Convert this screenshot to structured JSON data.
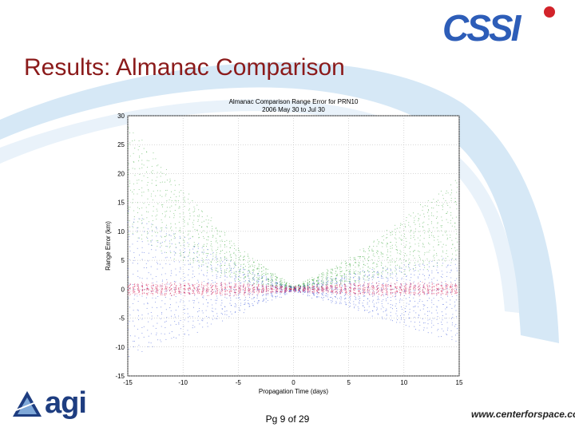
{
  "slide": {
    "title": "Results: Almanac Comparison",
    "page_label": "Pg 9 of 29",
    "brand_logo_text": "CSSI",
    "agi_logo_text": "agi",
    "footer_url": "www.centerforspace.com"
  },
  "colors": {
    "title": "#8b1a1a",
    "swoosh": "#d6e8f6",
    "series_green": "#2ca02c",
    "series_blue": "#1f3fd6",
    "series_red": "#d6174f"
  },
  "chart_data": {
    "type": "scatter",
    "title": "Almanac Comparison Range Error for PRN10",
    "subtitle": "2006 May 30 to Jul 30",
    "xlabel": "Propagation Time (days)",
    "ylabel": "Range Error (km)",
    "xlim": [
      -15,
      15
    ],
    "ylim": [
      -15,
      30
    ],
    "xticks": [
      "-15",
      "-10",
      "-5",
      "0",
      "5",
      "10",
      "15"
    ],
    "yticks": [
      "-15",
      "-10",
      "-5",
      "0",
      "5",
      "10",
      "15",
      "20",
      "25",
      "30"
    ],
    "grid": true,
    "series": [
      {
        "color": "#2ca02c",
        "envelope": {
          "x": [
            -15,
            -10,
            -5,
            0,
            5,
            10,
            15
          ],
          "upper": [
            28,
            17,
            7,
            0.3,
            5,
            12,
            19
          ],
          "lower": [
            10,
            5,
            1.5,
            0,
            1,
            3,
            5
          ]
        }
      },
      {
        "color": "#1f3fd6",
        "envelope": {
          "x": [
            -15,
            -10,
            -5,
            0,
            5,
            10,
            15
          ],
          "upper": [
            13,
            9,
            4,
            0.3,
            2.5,
            4,
            5
          ],
          "lower": [
            -11,
            -8,
            -4,
            -0.3,
            -3,
            -6,
            -9
          ]
        }
      },
      {
        "color": "#d6174f",
        "envelope": {
          "x": [
            -15,
            -10,
            -5,
            0,
            5,
            10,
            15
          ],
          "upper": [
            0.9,
            0.9,
            0.9,
            0.3,
            0.9,
            0.9,
            0.9
          ],
          "lower": [
            -0.9,
            -0.9,
            -0.9,
            -0.3,
            -0.9,
            -0.9,
            -0.9
          ]
        }
      }
    ]
  }
}
